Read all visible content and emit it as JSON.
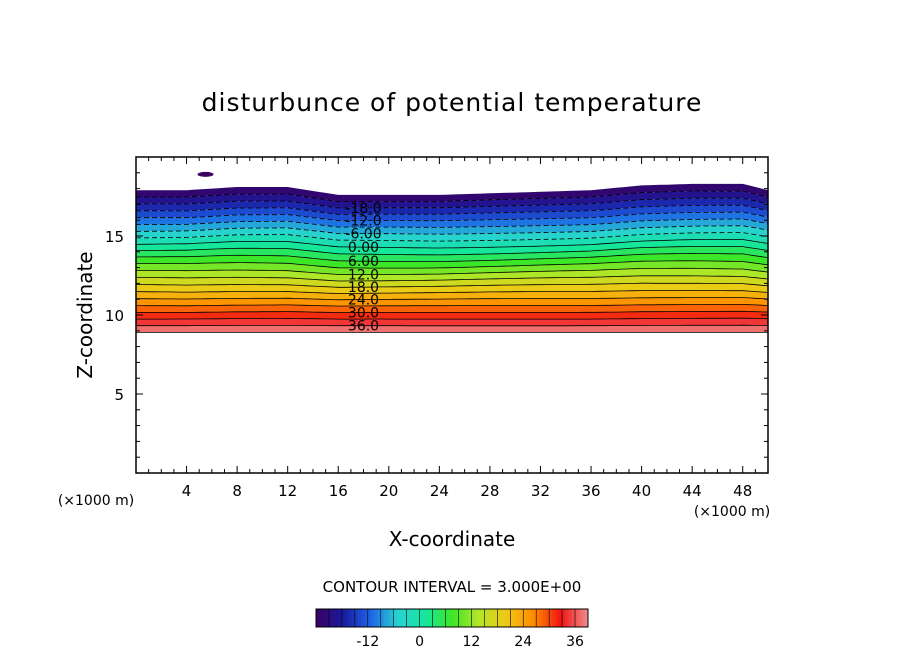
{
  "chart_data": {
    "type": "contour",
    "title": "disturbunce of potential temperature",
    "xlabel": "X-coordinate",
    "ylabel": "Z-coordinate",
    "x_unit": "(×1000 m)",
    "x_unit_right": "(×1000 m)",
    "xlim": [
      0,
      50
    ],
    "ylim": [
      0,
      20
    ],
    "x_ticks": [
      "4",
      "8",
      "12",
      "16",
      "20",
      "24",
      "28",
      "32",
      "36",
      "40",
      "44",
      "48"
    ],
    "y_ticks": [
      "5",
      "10",
      "15"
    ],
    "contour_interval_label": "CONTOUR INTERVAL = 3.000E+00",
    "contour_interval": 3,
    "levels_range": [
      -24,
      39
    ],
    "contour_labels": [
      "-18.0",
      "-12.0",
      "-6.00",
      "0.00",
      "6.00",
      "12.0",
      "18.0",
      "24.0",
      "30.0",
      "36.0"
    ],
    "field_top_profile": {
      "x": [
        0,
        4,
        8,
        12,
        16,
        20,
        24,
        28,
        32,
        36,
        40,
        44,
        48,
        50
      ],
      "z": [
        17.9,
        17.9,
        18.1,
        18.1,
        17.6,
        17.6,
        17.6,
        17.7,
        17.8,
        17.9,
        18.2,
        18.3,
        18.3,
        17.9
      ]
    },
    "field_bottom_z": 8.9,
    "isolated_blob": {
      "x": 5.5,
      "z": 18.9
    },
    "colorbar": {
      "ticks": [
        "-12",
        "0",
        "12",
        "24",
        "36"
      ],
      "colors": [
        "#3a0060",
        "#1a1aa0",
        "#1e64e6",
        "#28d2d2",
        "#14e6a0",
        "#3ce628",
        "#b4e628",
        "#f0c814",
        "#ff8c00",
        "#f01414",
        "#f08c8c"
      ]
    }
  }
}
